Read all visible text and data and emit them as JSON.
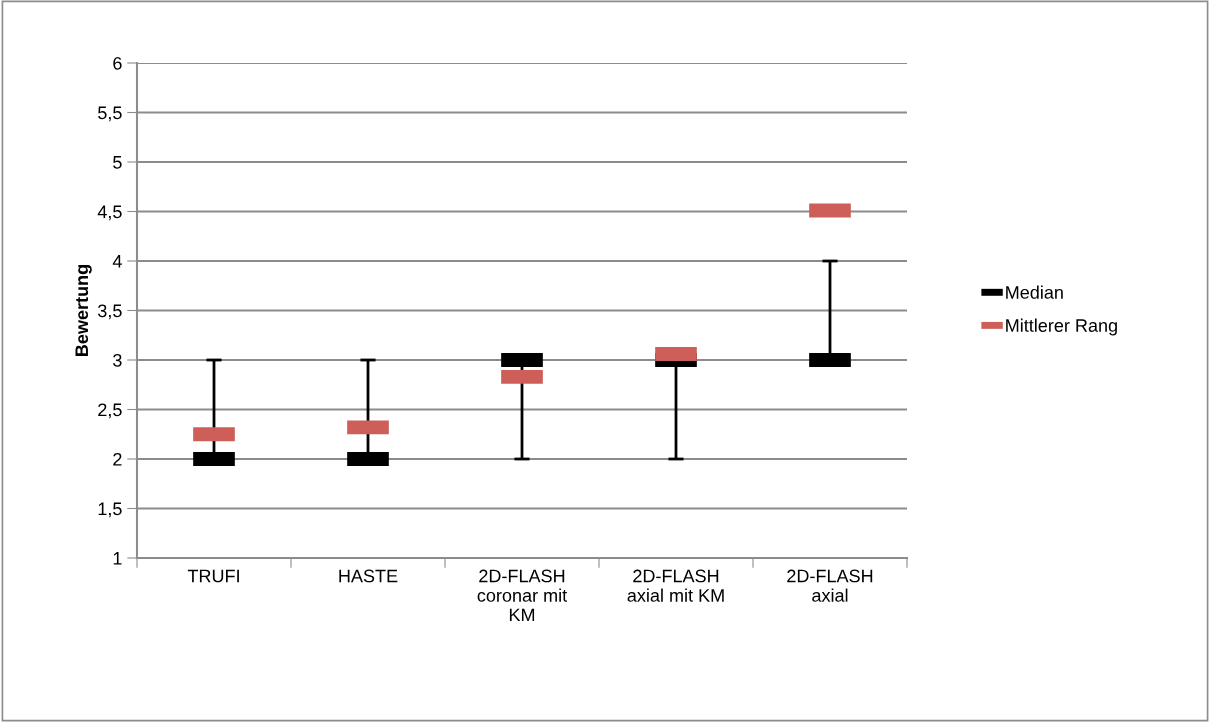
{
  "chart_data": {
    "type": "scatter",
    "ylabel": "Bewertung",
    "categories": [
      "TRUFI",
      "HASTE",
      "2D-FLASH coronar mit KM",
      "2D-FLASH axial mit KM",
      "2D-FLASH axial"
    ],
    "series": [
      {
        "name": "Median",
        "color": "#000000",
        "values": [
          2,
          2,
          3,
          3,
          3
        ],
        "errors": [
          [
            2,
            3
          ],
          [
            2,
            3
          ],
          [
            2,
            3
          ],
          [
            2,
            3
          ],
          [
            3,
            4
          ]
        ]
      },
      {
        "name": "Mittlerer Rang",
        "color": "#cd5f58",
        "values": [
          2.25,
          2.32,
          2.83,
          3.06,
          4.51
        ]
      }
    ],
    "ylim": [
      1,
      6
    ],
    "yticks": [
      1,
      {
        "value": 1.5,
        "label": "1,5"
      },
      2,
      {
        "value": 2.5,
        "label": "2,5"
      },
      3,
      {
        "value": 3.5,
        "label": "3,5"
      },
      4,
      {
        "value": 4.5,
        "label": "4,5"
      },
      5,
      {
        "value": 5.5,
        "label": "5,5"
      },
      6
    ],
    "grid": "y",
    "legend": "right"
  }
}
